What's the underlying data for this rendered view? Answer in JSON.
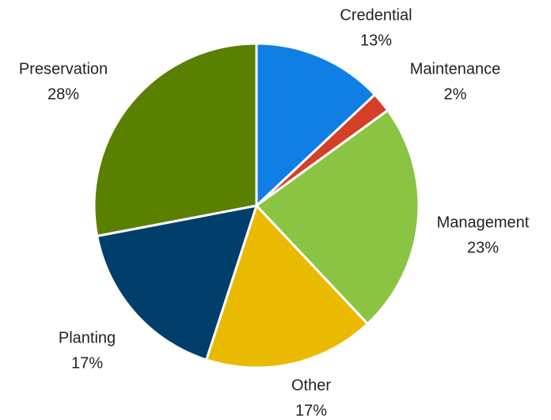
{
  "chart_data": {
    "type": "pie",
    "categories": [
      "Credential",
      "Maintenance",
      "Management",
      "Other",
      "Planting",
      "Preservation"
    ],
    "values": [
      13,
      2,
      23,
      17,
      17,
      28
    ],
    "value_labels": [
      "13%",
      "2%",
      "23%",
      "17%",
      "17%",
      "28%"
    ],
    "colors": [
      "#0f7fe5",
      "#d43f27",
      "#8bc443",
      "#e9ba00",
      "#003f6b",
      "#5a8000"
    ]
  }
}
